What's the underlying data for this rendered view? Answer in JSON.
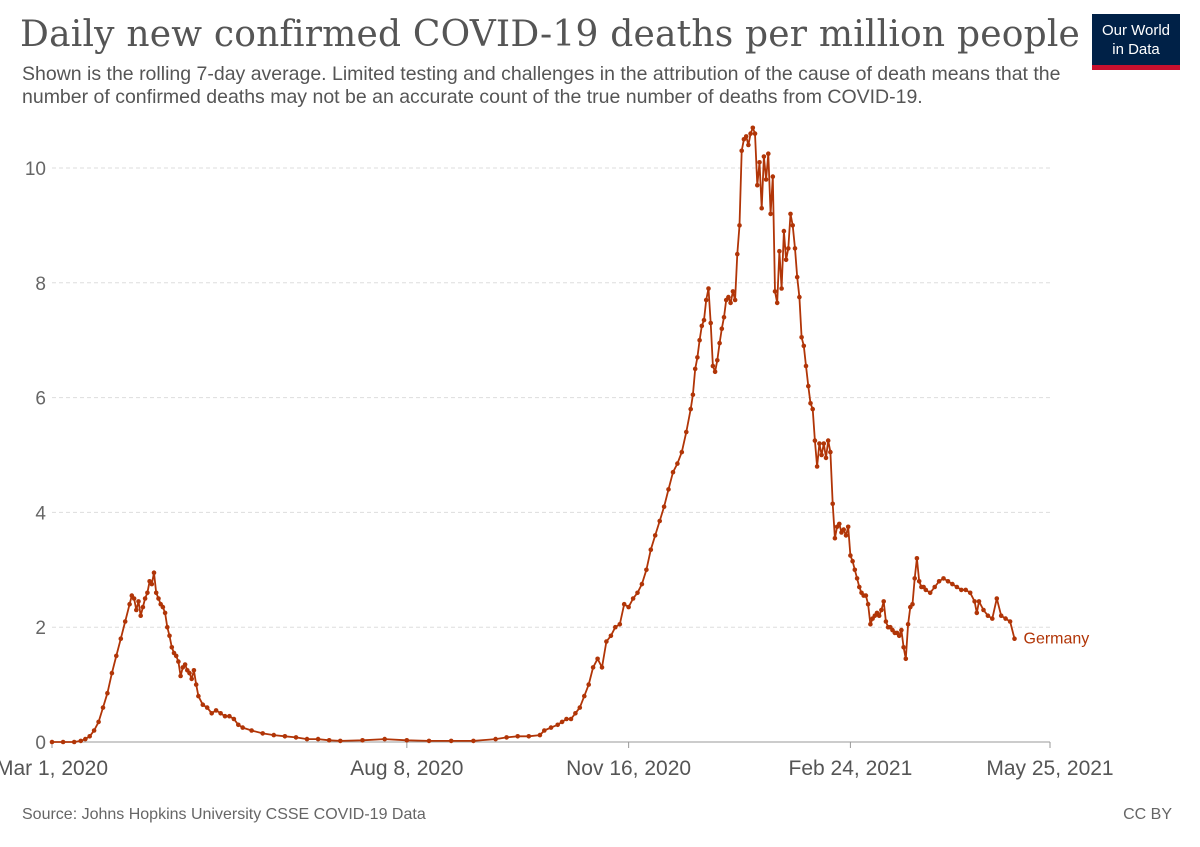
{
  "header": {
    "title": "Daily new confirmed COVID-19 deaths per million people",
    "subtitle": "Shown is the rolling 7-day average. Limited testing and challenges in the attribution of the cause of death means that the number of confirmed deaths may not be an accurate count of the true number of deaths from COVID-19."
  },
  "logo": {
    "line1": "Our World",
    "line2": "in Data"
  },
  "footer": {
    "source": "Source: Johns Hopkins University CSSE COVID-19 Data",
    "license": "CC BY"
  },
  "colors": {
    "series": "#b13507",
    "logo_bg": "#002147",
    "logo_accent": "#c8102e"
  },
  "chart_data": {
    "type": "line",
    "title": "Daily new confirmed COVID-19 deaths per million people",
    "xlabel": "",
    "ylabel": "",
    "x_unit": "days since Mar 1, 2020",
    "x_range": [
      0,
      450
    ],
    "ylim": [
      0,
      10
    ],
    "y_ticks": [
      "0",
      "2",
      "4",
      "6",
      "8",
      "10"
    ],
    "x_ticks": [
      {
        "day": 0,
        "label": "Mar 1, 2020"
      },
      {
        "day": 160,
        "label": "Aug 8, 2020"
      },
      {
        "day": 260,
        "label": "Nov 16, 2020"
      },
      {
        "day": 360,
        "label": "Feb 24, 2021"
      },
      {
        "day": 450,
        "label": "May 25, 2021"
      }
    ],
    "grid": true,
    "series": [
      {
        "name": "Germany",
        "points": [
          [
            0,
            0
          ],
          [
            5,
            0
          ],
          [
            10,
            0
          ],
          [
            13,
            0.02
          ],
          [
            15,
            0.05
          ],
          [
            17,
            0.1
          ],
          [
            19,
            0.2
          ],
          [
            21,
            0.35
          ],
          [
            23,
            0.6
          ],
          [
            25,
            0.85
          ],
          [
            27,
            1.2
          ],
          [
            29,
            1.5
          ],
          [
            31,
            1.8
          ],
          [
            33,
            2.1
          ],
          [
            35,
            2.4
          ],
          [
            36,
            2.55
          ],
          [
            37,
            2.5
          ],
          [
            38,
            2.3
          ],
          [
            39,
            2.45
          ],
          [
            40,
            2.2
          ],
          [
            41,
            2.35
          ],
          [
            42,
            2.5
          ],
          [
            43,
            2.6
          ],
          [
            44,
            2.8
          ],
          [
            45,
            2.75
          ],
          [
            46,
            2.95
          ],
          [
            47,
            2.6
          ],
          [
            48,
            2.5
          ],
          [
            49,
            2.4
          ],
          [
            50,
            2.35
          ],
          [
            51,
            2.25
          ],
          [
            52,
            2.0
          ],
          [
            53,
            1.85
          ],
          [
            54,
            1.65
          ],
          [
            55,
            1.55
          ],
          [
            56,
            1.5
          ],
          [
            57,
            1.4
          ],
          [
            58,
            1.15
          ],
          [
            59,
            1.3
          ],
          [
            60,
            1.35
          ],
          [
            61,
            1.25
          ],
          [
            62,
            1.2
          ],
          [
            63,
            1.1
          ],
          [
            64,
            1.25
          ],
          [
            65,
            1.0
          ],
          [
            66,
            0.8
          ],
          [
            68,
            0.65
          ],
          [
            70,
            0.6
          ],
          [
            72,
            0.5
          ],
          [
            74,
            0.55
          ],
          [
            76,
            0.5
          ],
          [
            78,
            0.45
          ],
          [
            80,
            0.45
          ],
          [
            82,
            0.4
          ],
          [
            84,
            0.3
          ],
          [
            86,
            0.25
          ],
          [
            90,
            0.2
          ],
          [
            95,
            0.15
          ],
          [
            100,
            0.12
          ],
          [
            105,
            0.1
          ],
          [
            110,
            0.08
          ],
          [
            115,
            0.05
          ],
          [
            120,
            0.05
          ],
          [
            125,
            0.03
          ],
          [
            130,
            0.02
          ],
          [
            140,
            0.03
          ],
          [
            150,
            0.05
          ],
          [
            160,
            0.03
          ],
          [
            170,
            0.02
          ],
          [
            180,
            0.02
          ],
          [
            190,
            0.02
          ],
          [
            200,
            0.05
          ],
          [
            205,
            0.08
          ],
          [
            210,
            0.1
          ],
          [
            215,
            0.1
          ],
          [
            220,
            0.12
          ],
          [
            222,
            0.2
          ],
          [
            225,
            0.25
          ],
          [
            228,
            0.3
          ],
          [
            230,
            0.35
          ],
          [
            232,
            0.4
          ],
          [
            234,
            0.4
          ],
          [
            236,
            0.5
          ],
          [
            238,
            0.6
          ],
          [
            240,
            0.8
          ],
          [
            242,
            1.0
          ],
          [
            244,
            1.3
          ],
          [
            246,
            1.45
          ],
          [
            248,
            1.3
          ],
          [
            250,
            1.75
          ],
          [
            252,
            1.85
          ],
          [
            254,
            2.0
          ],
          [
            256,
            2.05
          ],
          [
            258,
            2.4
          ],
          [
            260,
            2.35
          ],
          [
            262,
            2.5
          ],
          [
            264,
            2.6
          ],
          [
            266,
            2.75
          ],
          [
            268,
            3.0
          ],
          [
            270,
            3.35
          ],
          [
            272,
            3.6
          ],
          [
            274,
            3.85
          ],
          [
            276,
            4.1
          ],
          [
            278,
            4.4
          ],
          [
            280,
            4.7
          ],
          [
            282,
            4.85
          ],
          [
            284,
            5.05
          ],
          [
            286,
            5.4
          ],
          [
            288,
            5.8
          ],
          [
            289,
            6.05
          ],
          [
            290,
            6.5
          ],
          [
            291,
            6.7
          ],
          [
            292,
            7.0
          ],
          [
            293,
            7.25
          ],
          [
            294,
            7.35
          ],
          [
            295,
            7.7
          ],
          [
            296,
            7.9
          ],
          [
            297,
            7.3
          ],
          [
            298,
            6.55
          ],
          [
            299,
            6.45
          ],
          [
            300,
            6.65
          ],
          [
            301,
            6.95
          ],
          [
            302,
            7.2
          ],
          [
            303,
            7.4
          ],
          [
            304,
            7.7
          ],
          [
            305,
            7.75
          ],
          [
            306,
            7.65
          ],
          [
            307,
            7.85
          ],
          [
            308,
            7.7
          ],
          [
            309,
            8.5
          ],
          [
            310,
            9.0
          ],
          [
            311,
            10.3
          ],
          [
            312,
            10.5
          ],
          [
            313,
            10.55
          ],
          [
            314,
            10.4
          ],
          [
            315,
            10.6
          ],
          [
            316,
            10.7
          ],
          [
            317,
            10.6
          ],
          [
            318,
            9.7
          ],
          [
            319,
            10.1
          ],
          [
            320,
            9.3
          ],
          [
            321,
            10.2
          ],
          [
            322,
            9.8
          ],
          [
            323,
            10.25
          ],
          [
            324,
            9.2
          ],
          [
            325,
            9.85
          ],
          [
            326,
            7.85
          ],
          [
            327,
            7.65
          ],
          [
            328,
            8.55
          ],
          [
            329,
            7.9
          ],
          [
            330,
            8.9
          ],
          [
            331,
            8.4
          ],
          [
            332,
            8.6
          ],
          [
            333,
            9.2
          ],
          [
            334,
            9.0
          ],
          [
            335,
            8.6
          ],
          [
            336,
            8.1
          ],
          [
            337,
            7.75
          ],
          [
            338,
            7.05
          ],
          [
            339,
            6.9
          ],
          [
            340,
            6.55
          ],
          [
            341,
            6.2
          ],
          [
            342,
            5.9
          ],
          [
            343,
            5.8
          ],
          [
            344,
            5.25
          ],
          [
            345,
            4.8
          ],
          [
            346,
            5.2
          ],
          [
            347,
            5.0
          ],
          [
            348,
            5.2
          ],
          [
            349,
            4.95
          ],
          [
            350,
            5.25
          ],
          [
            351,
            5.05
          ],
          [
            352,
            4.15
          ],
          [
            353,
            3.55
          ],
          [
            354,
            3.75
          ],
          [
            355,
            3.8
          ],
          [
            356,
            3.65
          ],
          [
            357,
            3.7
          ],
          [
            358,
            3.6
          ],
          [
            359,
            3.75
          ],
          [
            360,
            3.25
          ],
          [
            361,
            3.15
          ],
          [
            362,
            3.0
          ],
          [
            363,
            2.85
          ],
          [
            364,
            2.7
          ],
          [
            365,
            2.6
          ],
          [
            366,
            2.55
          ],
          [
            367,
            2.55
          ],
          [
            368,
            2.4
          ],
          [
            369,
            2.05
          ],
          [
            370,
            2.15
          ],
          [
            371,
            2.2
          ],
          [
            372,
            2.25
          ],
          [
            373,
            2.2
          ],
          [
            374,
            2.3
          ],
          [
            375,
            2.45
          ],
          [
            376,
            2.1
          ],
          [
            377,
            2.0
          ],
          [
            378,
            2.0
          ],
          [
            379,
            1.95
          ],
          [
            380,
            1.9
          ],
          [
            381,
            1.9
          ],
          [
            382,
            1.85
          ],
          [
            383,
            1.95
          ],
          [
            384,
            1.65
          ],
          [
            385,
            1.45
          ],
          [
            386,
            2.05
          ],
          [
            387,
            2.35
          ],
          [
            388,
            2.4
          ],
          [
            389,
            2.85
          ],
          [
            390,
            3.2
          ],
          [
            391,
            2.8
          ],
          [
            392,
            2.7
          ],
          [
            393,
            2.7
          ],
          [
            394,
            2.65
          ],
          [
            396,
            2.6
          ],
          [
            398,
            2.7
          ],
          [
            400,
            2.8
          ],
          [
            402,
            2.85
          ],
          [
            404,
            2.8
          ],
          [
            406,
            2.75
          ],
          [
            408,
            2.7
          ],
          [
            410,
            2.65
          ],
          [
            412,
            2.65
          ],
          [
            414,
            2.6
          ],
          [
            416,
            2.45
          ],
          [
            417,
            2.25
          ],
          [
            418,
            2.45
          ],
          [
            420,
            2.3
          ],
          [
            422,
            2.2
          ],
          [
            424,
            2.15
          ],
          [
            426,
            2.5
          ],
          [
            428,
            2.2
          ],
          [
            430,
            2.15
          ],
          [
            432,
            2.1
          ],
          [
            434,
            1.8
          ]
        ]
      }
    ]
  }
}
